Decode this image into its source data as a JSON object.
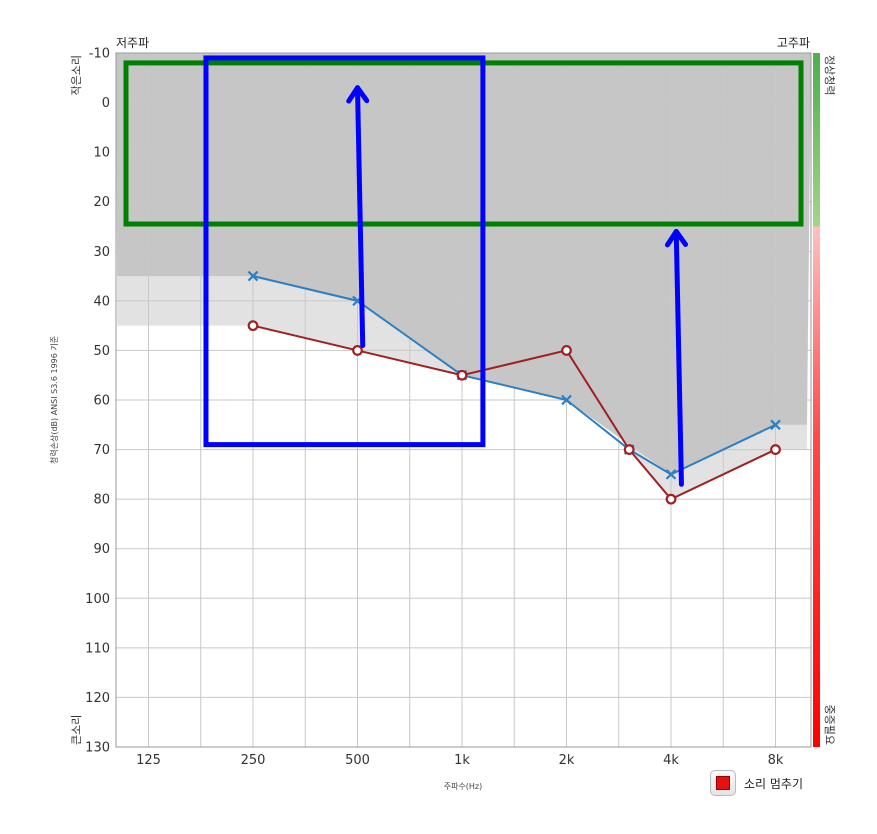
{
  "chart_data": {
    "type": "line",
    "categories": [
      "125",
      "250",
      "500",
      "1k",
      "2k",
      "4k",
      "8k"
    ],
    "x_label": "주파수(Hz)",
    "y_label": "청력손상(dB) ANSI S3.6 1996 기준",
    "y_range": [
      -10,
      130
    ],
    "y_ticks": [
      -10,
      0,
      10,
      20,
      30,
      40,
      50,
      60,
      70,
      80,
      90,
      100,
      110,
      120,
      130
    ],
    "y_inverted": true,
    "grid": true,
    "corner_labels": {
      "top_left": "저주파",
      "top_right": "고주파"
    },
    "y_side_labels": {
      "top": "작은소리",
      "bottom": "큰소리"
    },
    "scale_labels": {
      "top": "정상청력",
      "bottom": "중증필요"
    },
    "series": [
      {
        "marker": "x",
        "color": "#2e7fc2",
        "points": [
          [
            1,
            35
          ],
          [
            2,
            40
          ],
          [
            3,
            55
          ],
          [
            4,
            60
          ],
          [
            4.6,
            70
          ],
          [
            5,
            75
          ],
          [
            6,
            65
          ]
        ]
      },
      {
        "marker": "o",
        "color": "#a02020",
        "points": [
          [
            1,
            45
          ],
          [
            2,
            50
          ],
          [
            3,
            55
          ],
          [
            4,
            50
          ],
          [
            4.6,
            70
          ],
          [
            5,
            80
          ],
          [
            6,
            70
          ]
        ]
      }
    ],
    "shaded_regions": [
      {
        "shade": "dark",
        "boundary": [
          [
            -0.3,
            35
          ],
          [
            1,
            35
          ],
          [
            2,
            40
          ],
          [
            3,
            55
          ],
          [
            4,
            60
          ],
          [
            5,
            75
          ],
          [
            6,
            65
          ],
          [
            6.3,
            65
          ]
        ]
      },
      {
        "shade": "light",
        "boundary": [
          [
            -0.3,
            45
          ],
          [
            1,
            45
          ],
          [
            2,
            50
          ],
          [
            3,
            55
          ],
          [
            4,
            50
          ],
          [
            4.6,
            70
          ],
          [
            5,
            80
          ],
          [
            6,
            70
          ],
          [
            6.3,
            70
          ]
        ]
      }
    ],
    "annotations": {
      "green_rect": {
        "x": [
          -0.3,
          6.3
        ],
        "y": [
          -8,
          24.5
        ],
        "color": "#008000"
      },
      "blue_rect": {
        "x": [
          0.55,
          3.2
        ],
        "y": [
          -9,
          69
        ],
        "color": "#0000ff"
      },
      "arrows": [
        {
          "from": [
            2.05,
            49
          ],
          "to": [
            2.0,
            -3
          ],
          "color": "#0000ff"
        },
        {
          "from": [
            5.1,
            77
          ],
          "to": [
            5.05,
            26
          ],
          "color": "#0000ff"
        }
      ]
    },
    "scale_bar": {
      "colors": [
        "#4caf50",
        "#a5d48a",
        "#ffc0c0",
        "#ff4a4a",
        "#ff0000"
      ],
      "stops": [
        0,
        0.25,
        0.25,
        0.55,
        1
      ]
    }
  },
  "controls": {
    "stop_label": "소리 멈추기"
  },
  "colors": {
    "grid": "#c8c8c8",
    "dark_shade": "#c6c6c6",
    "light_shade": "#e2e2e2"
  }
}
